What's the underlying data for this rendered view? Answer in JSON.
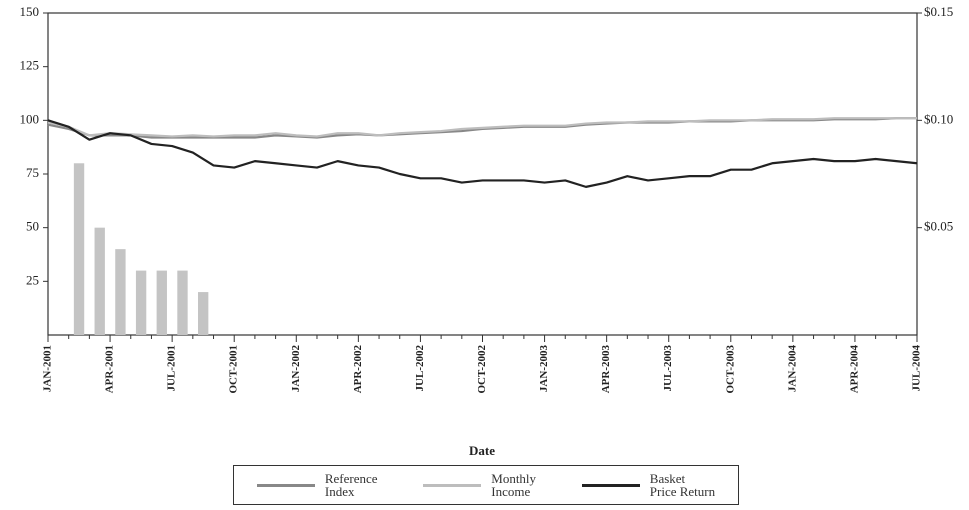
{
  "chart_data": {
    "type": "line",
    "x_label": "Date",
    "categories": [
      "JAN-2001",
      null,
      null,
      "APR-2001",
      null,
      null,
      "JUL-2001",
      null,
      null,
      "OCT-2001",
      null,
      null,
      "JAN-2002",
      null,
      null,
      "APR-2002",
      null,
      null,
      "JUL-2002",
      null,
      null,
      "OCT-2002",
      null,
      null,
      "JAN-2003",
      null,
      null,
      "APR-2003",
      null,
      null,
      "JUL-2003",
      null,
      null,
      "OCT-2003",
      null,
      null,
      "JAN-2004",
      null,
      null,
      "APR-2004",
      null,
      null,
      "JUL-2004"
    ],
    "ylim": [
      0,
      150
    ],
    "yticks": [
      25,
      50,
      75,
      100,
      125,
      150
    ],
    "y2lim": [
      0,
      0.15
    ],
    "y2ticks": [
      {
        "value": 0.05,
        "label": "$0.05"
      },
      {
        "value": 0.1,
        "label": "$0.10"
      },
      {
        "value": 0.15,
        "label": "$0.15"
      }
    ],
    "series": [
      {
        "type": "bar",
        "axis": "y2",
        "color": "#c4c4c4",
        "values": [
          null,
          0.08,
          0.05,
          0.04,
          0.03,
          0.03,
          0.03,
          0.02,
          null,
          null,
          null,
          null,
          null,
          null,
          null,
          null,
          null,
          null,
          null,
          null,
          null,
          null,
          null,
          null,
          null,
          null,
          null,
          null,
          null,
          null,
          null,
          null,
          null,
          null,
          null,
          null,
          null,
          null,
          null,
          null,
          null,
          null,
          null
        ]
      },
      {
        "name": "Reference\nIndex",
        "type": "line",
        "color": "#888888",
        "values": [
          98,
          96,
          93,
          93,
          93,
          92,
          92,
          92,
          92,
          92,
          92,
          93,
          92.5,
          92,
          93,
          93.5,
          93,
          93.5,
          94,
          94.5,
          95,
          96,
          96.5,
          97,
          97,
          97,
          98,
          98.5,
          99,
          99,
          99,
          99.5,
          99.5,
          99.5,
          100,
          100,
          100,
          100,
          100.5,
          100.5,
          100.5,
          101,
          101
        ]
      },
      {
        "name": "Monthly\nIncome",
        "type": "line",
        "color": "#bdbdbd",
        "values": [
          99,
          97,
          93,
          94,
          93.5,
          93,
          92.5,
          93,
          92.5,
          93,
          93,
          94,
          93,
          92.5,
          94,
          94,
          93,
          94,
          94.5,
          95,
          96,
          96.5,
          97,
          97.5,
          97.5,
          97.5,
          98.5,
          99,
          99,
          99.5,
          99.5,
          99.5,
          100,
          100,
          100,
          100.5,
          100.5,
          100.5,
          101,
          101,
          101,
          101,
          101
        ]
      },
      {
        "name": "Basket\nPrice Return",
        "type": "line",
        "color": "#222222",
        "values": [
          100,
          97,
          91,
          94,
          93,
          89,
          88,
          85,
          79,
          78,
          81,
          80,
          79,
          78,
          81,
          79,
          78,
          75,
          73,
          73,
          71,
          72,
          72,
          72,
          71,
          72,
          69,
          71,
          74,
          72,
          73,
          74,
          74,
          77,
          77,
          80,
          81,
          82,
          81,
          81,
          82,
          81,
          80
        ]
      }
    ]
  }
}
